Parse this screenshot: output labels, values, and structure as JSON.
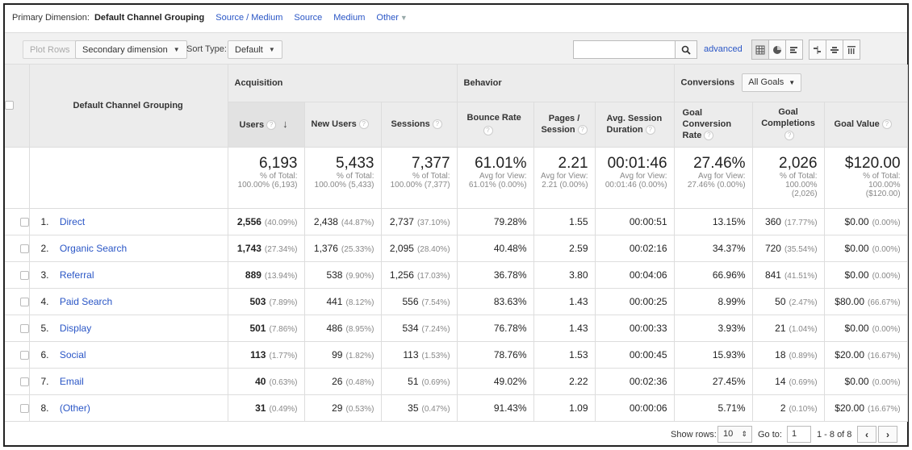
{
  "dimension_bar": {
    "label": "Primary Dimension:",
    "selected": "Default Channel Grouping",
    "links": [
      "Source / Medium",
      "Source",
      "Medium",
      "Other"
    ]
  },
  "toolbar": {
    "plot_rows": "Plot Rows",
    "secondary_dimension": "Secondary dimension",
    "sort_type_label": "Sort Type:",
    "sort_type_value": "Default",
    "search_value": "",
    "advanced": "advanced"
  },
  "table": {
    "dimension_header": "Default Channel Grouping",
    "groups": {
      "acquisition": "Acquisition",
      "behavior": "Behavior",
      "conversions": "Conversions",
      "goal_select": "All Goals"
    },
    "columns": {
      "users": "Users",
      "new_users": "New Users",
      "sessions": "Sessions",
      "bounce_rate": "Bounce Rate",
      "pages_session_1": "Pages /",
      "pages_session_2": "Session",
      "avg_duration_1": "Avg. Session",
      "avg_duration_2": "Duration",
      "goal_conv_1": "Goal Conversion",
      "goal_conv_2": "Rate",
      "goal_comp_1": "Goal",
      "goal_comp_2": "Completions",
      "goal_value": "Goal Value"
    },
    "totals": {
      "users": {
        "value": "6,193",
        "sub1": "% of Total:",
        "sub2": "100.00% (6,193)"
      },
      "new_users": {
        "value": "5,433",
        "sub1": "% of Total:",
        "sub2": "100.00% (5,433)"
      },
      "sessions": {
        "value": "7,377",
        "sub1": "% of Total:",
        "sub2": "100.00% (7,377)"
      },
      "bounce_rate": {
        "value": "61.01%",
        "sub1": "Avg for View:",
        "sub2": "61.01% (0.00%)"
      },
      "pages_session": {
        "value": "2.21",
        "sub1": "Avg for View:",
        "sub2": "2.21 (0.00%)"
      },
      "avg_duration": {
        "value": "00:01:46",
        "sub1": "Avg for View:",
        "sub2": "00:01:46 (0.00%)"
      },
      "goal_conv": {
        "value": "27.46%",
        "sub1": "Avg for View:",
        "sub2": "27.46% (0.00%)"
      },
      "goal_comp": {
        "value": "2,026",
        "sub1": "% of Total:",
        "sub2": "100.00%",
        "sub3": "(2,026)"
      },
      "goal_value": {
        "value": "$120.00",
        "sub1": "% of Total:",
        "sub2": "100.00%",
        "sub3": "($120.00)"
      }
    },
    "rows": [
      {
        "idx": "1.",
        "name": "Direct",
        "users": "2,556",
        "users_pct": "(40.09%)",
        "new_users": "2,438",
        "new_users_pct": "(44.87%)",
        "sessions": "2,737",
        "sessions_pct": "(37.10%)",
        "bounce": "79.28%",
        "pages": "1.55",
        "duration": "00:00:51",
        "conv": "13.15%",
        "comp": "360",
        "comp_pct": "(17.77%)",
        "value": "$0.00",
        "value_pct": "(0.00%)"
      },
      {
        "idx": "2.",
        "name": "Organic Search",
        "users": "1,743",
        "users_pct": "(27.34%)",
        "new_users": "1,376",
        "new_users_pct": "(25.33%)",
        "sessions": "2,095",
        "sessions_pct": "(28.40%)",
        "bounce": "40.48%",
        "pages": "2.59",
        "duration": "00:02:16",
        "conv": "34.37%",
        "comp": "720",
        "comp_pct": "(35.54%)",
        "value": "$0.00",
        "value_pct": "(0.00%)"
      },
      {
        "idx": "3.",
        "name": "Referral",
        "users": "889",
        "users_pct": "(13.94%)",
        "new_users": "538",
        "new_users_pct": "(9.90%)",
        "sessions": "1,256",
        "sessions_pct": "(17.03%)",
        "bounce": "36.78%",
        "pages": "3.80",
        "duration": "00:04:06",
        "conv": "66.96%",
        "comp": "841",
        "comp_pct": "(41.51%)",
        "value": "$0.00",
        "value_pct": "(0.00%)"
      },
      {
        "idx": "4.",
        "name": "Paid Search",
        "users": "503",
        "users_pct": "(7.89%)",
        "new_users": "441",
        "new_users_pct": "(8.12%)",
        "sessions": "556",
        "sessions_pct": "(7.54%)",
        "bounce": "83.63%",
        "pages": "1.43",
        "duration": "00:00:25",
        "conv": "8.99%",
        "comp": "50",
        "comp_pct": "(2.47%)",
        "value": "$80.00",
        "value_pct": "(66.67%)"
      },
      {
        "idx": "5.",
        "name": "Display",
        "users": "501",
        "users_pct": "(7.86%)",
        "new_users": "486",
        "new_users_pct": "(8.95%)",
        "sessions": "534",
        "sessions_pct": "(7.24%)",
        "bounce": "76.78%",
        "pages": "1.43",
        "duration": "00:00:33",
        "conv": "3.93%",
        "comp": "21",
        "comp_pct": "(1.04%)",
        "value": "$0.00",
        "value_pct": "(0.00%)"
      },
      {
        "idx": "6.",
        "name": "Social",
        "users": "113",
        "users_pct": "(1.77%)",
        "new_users": "99",
        "new_users_pct": "(1.82%)",
        "sessions": "113",
        "sessions_pct": "(1.53%)",
        "bounce": "78.76%",
        "pages": "1.53",
        "duration": "00:00:45",
        "conv": "15.93%",
        "comp": "18",
        "comp_pct": "(0.89%)",
        "value": "$20.00",
        "value_pct": "(16.67%)"
      },
      {
        "idx": "7.",
        "name": "Email",
        "users": "40",
        "users_pct": "(0.63%)",
        "new_users": "26",
        "new_users_pct": "(0.48%)",
        "sessions": "51",
        "sessions_pct": "(0.69%)",
        "bounce": "49.02%",
        "pages": "2.22",
        "duration": "00:02:36",
        "conv": "27.45%",
        "comp": "14",
        "comp_pct": "(0.69%)",
        "value": "$0.00",
        "value_pct": "(0.00%)"
      },
      {
        "idx": "8.",
        "name": "(Other)",
        "users": "31",
        "users_pct": "(0.49%)",
        "new_users": "29",
        "new_users_pct": "(0.53%)",
        "sessions": "35",
        "sessions_pct": "(0.47%)",
        "bounce": "91.43%",
        "pages": "1.09",
        "duration": "00:00:06",
        "conv": "5.71%",
        "comp": "2",
        "comp_pct": "(0.10%)",
        "value": "$20.00",
        "value_pct": "(16.67%)"
      }
    ]
  },
  "footer": {
    "show_rows_label": "Show rows:",
    "show_rows_value": "10",
    "goto_label": "Go to:",
    "goto_value": "1",
    "range": "1 - 8 of 8",
    "prev": "‹",
    "next": "›"
  },
  "colors": {
    "link": "#2a56c6",
    "header_bg": "#ececec",
    "border": "#dddddd"
  }
}
